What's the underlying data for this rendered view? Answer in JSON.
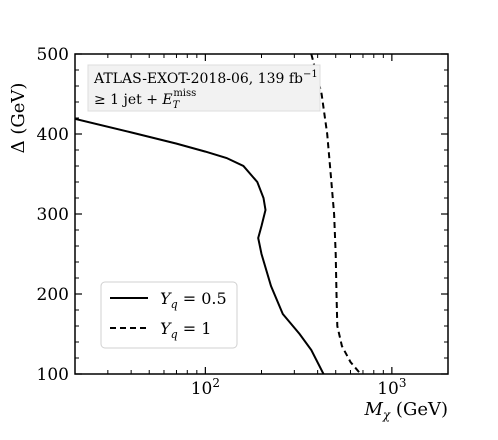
{
  "chart_data": {
    "type": "line",
    "xscale": "log",
    "xlim": [
      20,
      2000
    ],
    "ylim": [
      100,
      500
    ],
    "xlabel_main": "M",
    "xlabel_sub": "χ",
    "xlabel_unit": " (GeV)",
    "ylabel": "Δ (GeV)",
    "x_ticks": [
      {
        "value": 100,
        "base": "10",
        "exp": "2"
      },
      {
        "value": 1000,
        "base": "10",
        "exp": "3"
      }
    ],
    "y_ticks": [
      {
        "value": 100,
        "label": "100"
      },
      {
        "value": 200,
        "label": "200"
      },
      {
        "value": 300,
        "label": "300"
      },
      {
        "value": 400,
        "label": "400"
      },
      {
        "value": 500,
        "label": "500"
      }
    ],
    "annotation": {
      "line1": "ATLAS-EXOT-2018-06, 139 fb",
      "line1_sup": "−1",
      "line2_pre": "≥ 1 jet + ",
      "line2_E": "E",
      "line2_sub": "T",
      "line2_sup": "miss"
    },
    "legend_position": "lower-left",
    "series": [
      {
        "name": "Y_q = 0.5",
        "legend_label": "Y",
        "legend_sub": "q",
        "legend_rhs": " = 0.5",
        "style": "solid",
        "color": "#000000",
        "points": [
          [
            20,
            419
          ],
          [
            40,
            402
          ],
          [
            70,
            388
          ],
          [
            100,
            378
          ],
          [
            130,
            370
          ],
          [
            160,
            360
          ],
          [
            190,
            340
          ],
          [
            205,
            320
          ],
          [
            210,
            305
          ],
          [
            200,
            285
          ],
          [
            192,
            270
          ],
          [
            200,
            250
          ],
          [
            225,
            210
          ],
          [
            260,
            175
          ],
          [
            320,
            150
          ],
          [
            370,
            130
          ],
          [
            430,
            100
          ]
        ]
      },
      {
        "name": "Y_q = 1",
        "legend_label": "Y",
        "legend_sub": "q",
        "legend_rhs": " = 1",
        "style": "dashed",
        "color": "#000000",
        "points": [
          [
            370,
            500
          ],
          [
            420,
            450
          ],
          [
            450,
            400
          ],
          [
            470,
            350
          ],
          [
            490,
            300
          ],
          [
            500,
            250
          ],
          [
            505,
            200
          ],
          [
            510,
            160
          ],
          [
            540,
            135
          ],
          [
            600,
            115
          ],
          [
            680,
            100
          ]
        ]
      }
    ]
  }
}
